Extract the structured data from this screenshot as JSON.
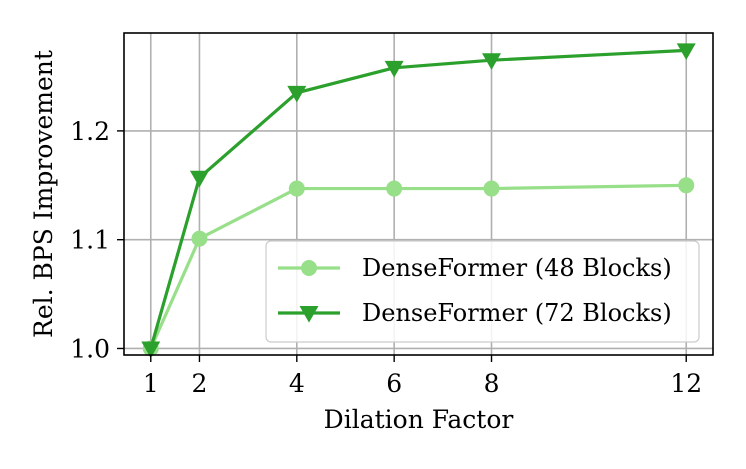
{
  "chart_data": {
    "type": "line",
    "xlabel": "Dilation Factor",
    "ylabel": "Rel. BPS Improvement",
    "x": [
      1,
      2,
      4,
      6,
      8,
      12
    ],
    "xticks": [
      "1",
      "2",
      "4",
      "6",
      "8",
      "12"
    ],
    "yticks": [
      "1.0",
      "1.1",
      "1.2"
    ],
    "xlim": [
      0.45,
      12.55
    ],
    "ylim": [
      0.994,
      1.29
    ],
    "grid": true,
    "legend_position": "lower-right",
    "series": [
      {
        "name": "DenseFormer (48 Blocks)",
        "values": [
          1.0,
          1.101,
          1.147,
          1.147,
          1.147,
          1.15
        ],
        "color": "#98df8a",
        "marker": "circle"
      },
      {
        "name": "DenseFormer (72 Blocks)",
        "values": [
          1.0,
          1.157,
          1.235,
          1.258,
          1.265,
          1.274
        ],
        "color": "#2ca02c",
        "marker": "triangle-down"
      }
    ]
  }
}
